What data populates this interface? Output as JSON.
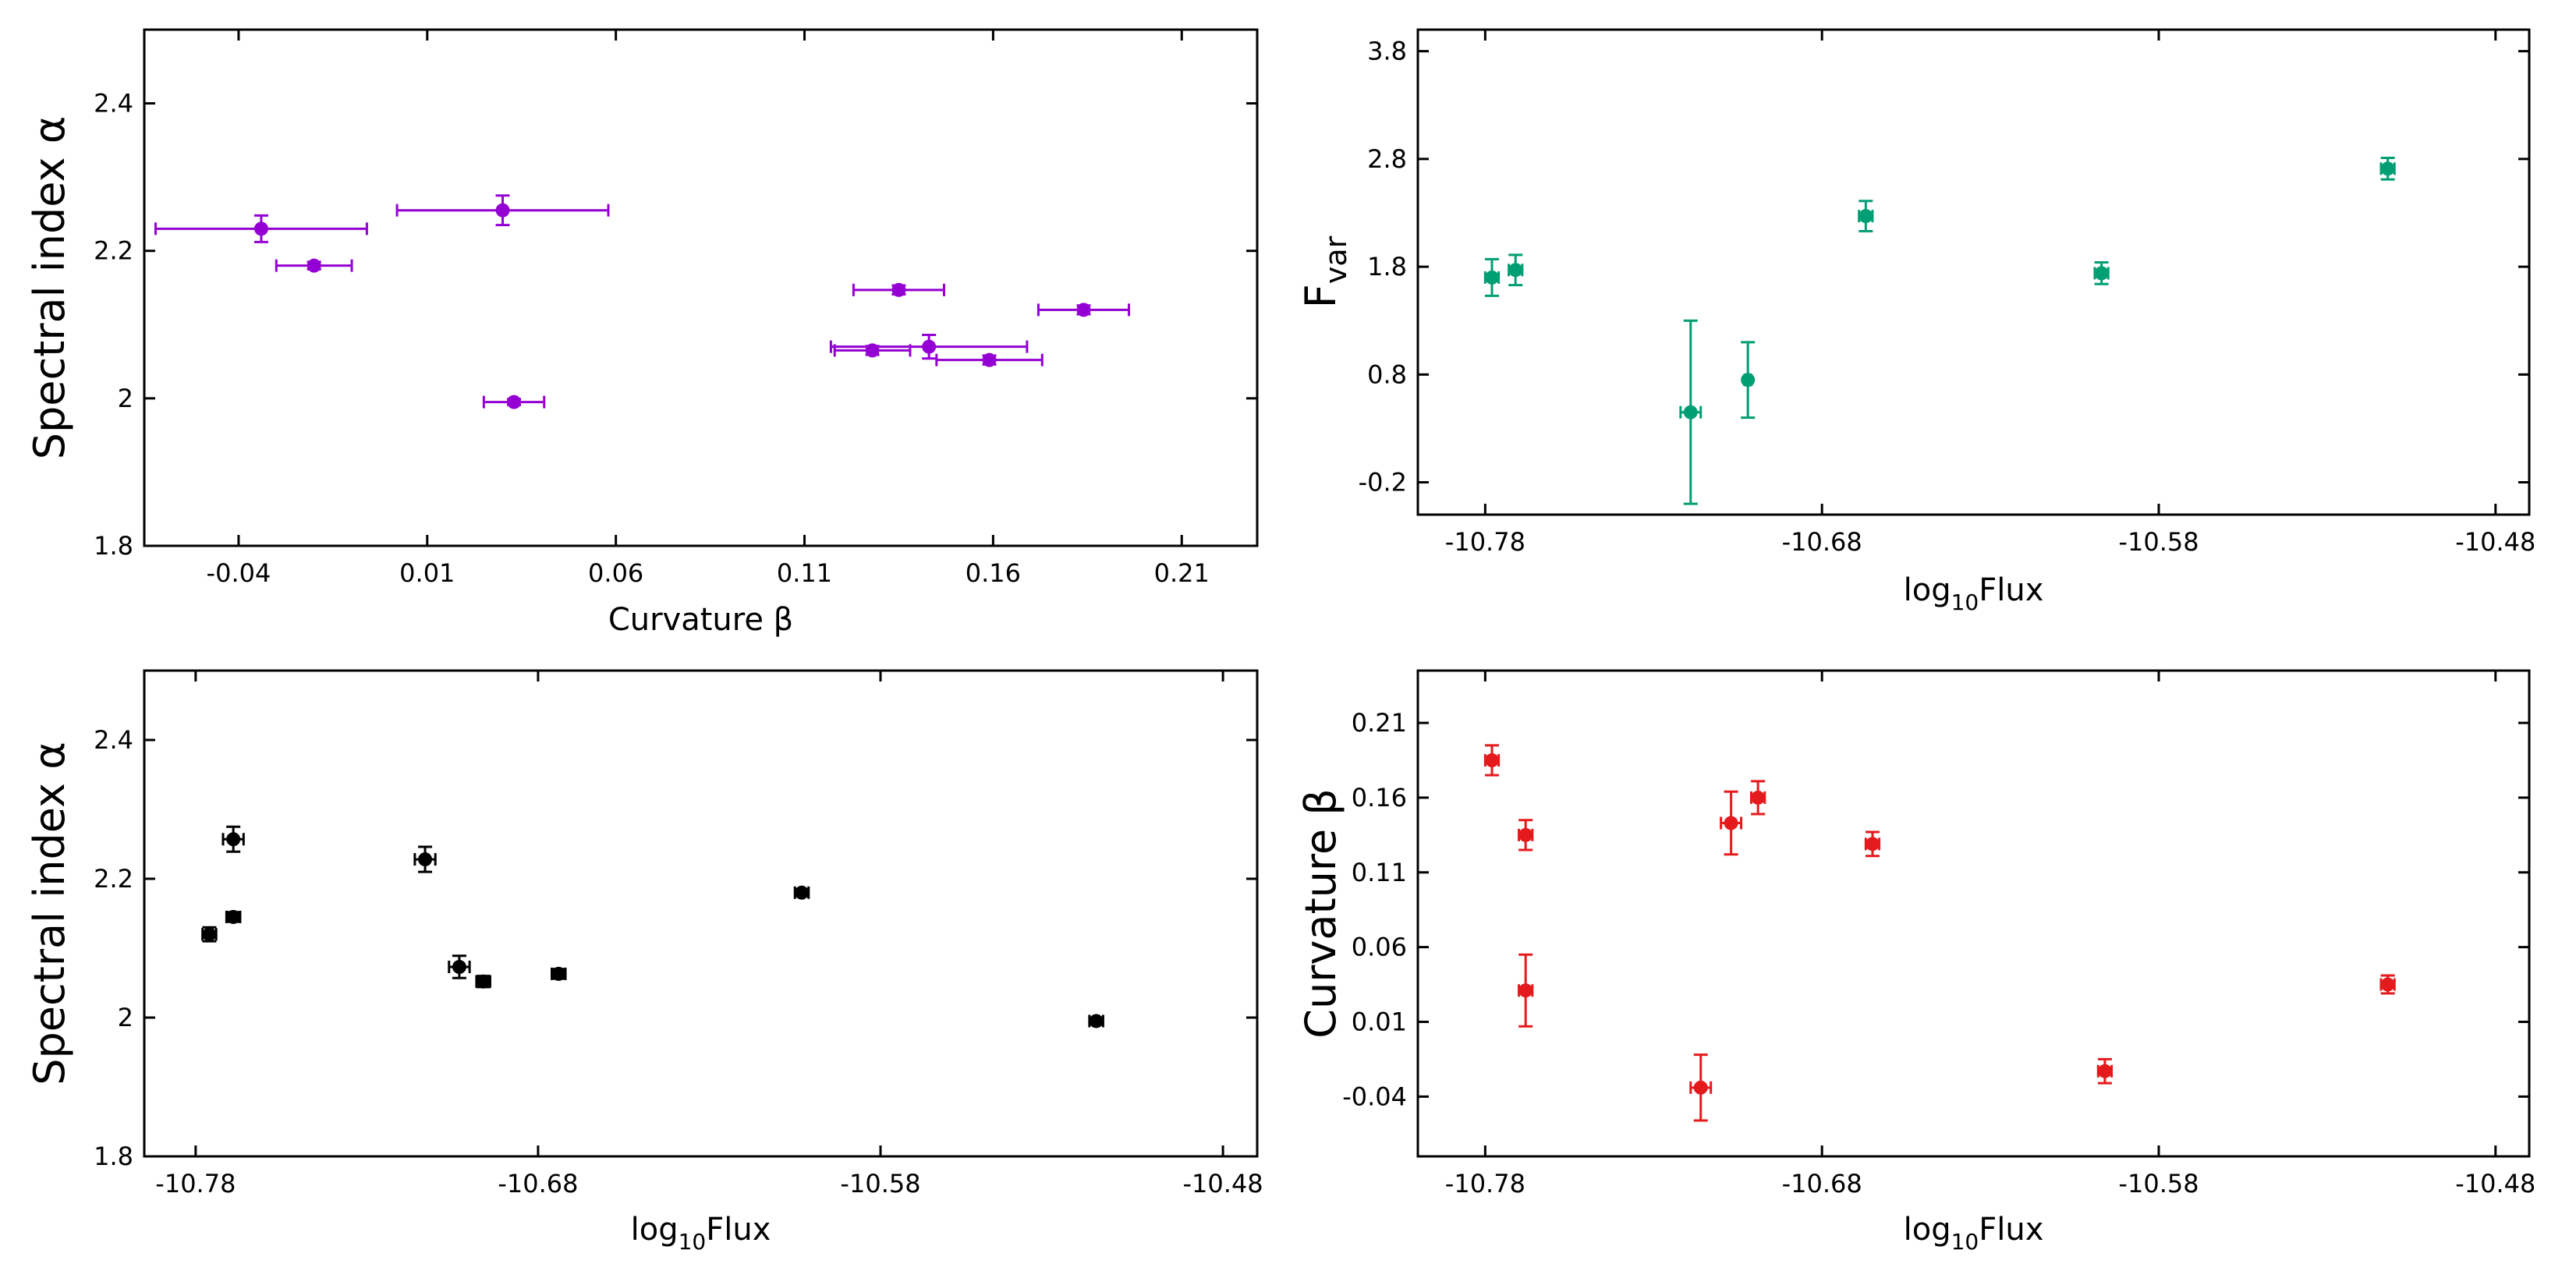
{
  "chart_data": [
    {
      "id": "alpha-vs-beta",
      "type": "scatter",
      "xlabel": "Curvature β",
      "ylabel": "Spectral index α",
      "xlim": [
        -0.065,
        0.23
      ],
      "ylim": [
        1.8,
        2.5
      ],
      "xticks": [
        -0.04,
        0.01,
        0.06,
        0.11,
        0.16,
        0.21
      ],
      "xtick_labels": [
        "-0.04",
        "0.01",
        "0.06",
        "0.11",
        "0.16",
        "0.21"
      ],
      "yticks": [
        1.8,
        2.0,
        2.2,
        2.4
      ],
      "ytick_labels": [
        "1.8",
        "2",
        "2.2",
        "2.4"
      ],
      "color": "#9400d3",
      "points": [
        {
          "x": -0.034,
          "y": 2.23,
          "xerr": 0.028,
          "yerr": 0.018
        },
        {
          "x": -0.02,
          "y": 2.18,
          "xerr": 0.01,
          "yerr": 0.005
        },
        {
          "x": 0.03,
          "y": 2.255,
          "xerr": 0.028,
          "yerr": 0.02
        },
        {
          "x": 0.033,
          "y": 1.995,
          "xerr": 0.008,
          "yerr": 0.004
        },
        {
          "x": 0.135,
          "y": 2.147,
          "xerr": 0.012,
          "yerr": 0.006
        },
        {
          "x": 0.128,
          "y": 2.065,
          "xerr": 0.01,
          "yerr": 0.006
        },
        {
          "x": 0.143,
          "y": 2.07,
          "xerr": 0.026,
          "yerr": 0.016
        },
        {
          "x": 0.159,
          "y": 2.052,
          "xerr": 0.014,
          "yerr": 0.006
        },
        {
          "x": 0.184,
          "y": 2.12,
          "xerr": 0.012,
          "yerr": 0.006
        }
      ]
    },
    {
      "id": "fvar-vs-flux",
      "type": "scatter",
      "xlabel": "log",
      "xlabel_sub": "10",
      "xlabel_rest": "Flux",
      "ylabel": "F",
      "ylabel_sub": "var",
      "xlim": [
        -10.8,
        -10.47
      ],
      "ylim": [
        -0.5,
        4.0
      ],
      "xticks": [
        -10.78,
        -10.68,
        -10.58,
        -10.48
      ],
      "xtick_labels": [
        "-10.78",
        "-10.68",
        "-10.58",
        "-10.48"
      ],
      "yticks": [
        -0.2,
        0.8,
        1.8,
        2.8,
        3.8
      ],
      "ytick_labels": [
        "-0.2",
        "0.8",
        "1.8",
        "2.8",
        "3.8"
      ],
      "color": "#009e73",
      "points": [
        {
          "x": -10.778,
          "y": 1.7,
          "xerr": 0.002,
          "yerr": 0.17
        },
        {
          "x": -10.771,
          "y": 1.77,
          "xerr": 0.002,
          "yerr": 0.14
        },
        {
          "x": -10.719,
          "y": 0.45,
          "xerr": 0.003,
          "yerr": 0.85
        },
        {
          "x": -10.702,
          "y": 0.75,
          "xerr": 0.001,
          "yerr": 0.35
        },
        {
          "x": -10.667,
          "y": 2.27,
          "xerr": 0.002,
          "yerr": 0.14
        },
        {
          "x": -10.597,
          "y": 1.74,
          "xerr": 0.002,
          "yerr": 0.1
        },
        {
          "x": -10.512,
          "y": 2.71,
          "xerr": 0.002,
          "yerr": 0.1
        }
      ]
    },
    {
      "id": "alpha-vs-flux",
      "type": "scatter",
      "xlabel": "log",
      "xlabel_sub": "10",
      "xlabel_rest": "Flux",
      "ylabel": "Spectral index α",
      "xlim": [
        -10.795,
        -10.47
      ],
      "ylim": [
        1.8,
        2.5
      ],
      "xticks": [
        -10.78,
        -10.68,
        -10.58,
        -10.48
      ],
      "xtick_labels": [
        "-10.78",
        "-10.68",
        "-10.58",
        "-10.48"
      ],
      "yticks": [
        1.8,
        2.0,
        2.2,
        2.4
      ],
      "ytick_labels": [
        "1.8",
        "2",
        "2.2",
        "2.4"
      ],
      "color": "#000000",
      "points": [
        {
          "x": -10.776,
          "y": 2.12,
          "xerr": 0.002,
          "yerr": 0.01
        },
        {
          "x": -10.769,
          "y": 2.145,
          "xerr": 0.002,
          "yerr": 0.007
        },
        {
          "x": -10.769,
          "y": 2.257,
          "xerr": 0.003,
          "yerr": 0.018
        },
        {
          "x": -10.713,
          "y": 2.228,
          "xerr": 0.003,
          "yerr": 0.018
        },
        {
          "x": -10.703,
          "y": 2.073,
          "xerr": 0.003,
          "yerr": 0.016
        },
        {
          "x": -10.696,
          "y": 2.052,
          "xerr": 0.002,
          "yerr": 0.008
        },
        {
          "x": -10.674,
          "y": 2.063,
          "xerr": 0.002,
          "yerr": 0.007
        },
        {
          "x": -10.603,
          "y": 2.18,
          "xerr": 0.002,
          "yerr": 0.005
        },
        {
          "x": -10.517,
          "y": 1.995,
          "xerr": 0.002,
          "yerr": 0.005
        }
      ]
    },
    {
      "id": "beta-vs-flux",
      "type": "scatter",
      "xlabel": "log",
      "xlabel_sub": "10",
      "xlabel_rest": "Flux",
      "ylabel": "Curvature β",
      "xlim": [
        -10.8,
        -10.47
      ],
      "ylim": [
        -0.08,
        0.245
      ],
      "xticks": [
        -10.78,
        -10.68,
        -10.58,
        -10.48
      ],
      "xtick_labels": [
        "-10.78",
        "-10.68",
        "-10.58",
        "-10.48"
      ],
      "yticks": [
        -0.04,
        0.01,
        0.06,
        0.11,
        0.16,
        0.21
      ],
      "ytick_labels": [
        "-0.04",
        "0.01",
        "0.06",
        "0.11",
        "0.16",
        "0.21"
      ],
      "color": "#e41a1c",
      "points": [
        {
          "x": -10.778,
          "y": 0.185,
          "xerr": 0.002,
          "yerr": 0.01
        },
        {
          "x": -10.768,
          "y": 0.135,
          "xerr": 0.002,
          "yerr": 0.01
        },
        {
          "x": -10.768,
          "y": 0.031,
          "xerr": 0.002,
          "yerr": 0.024
        },
        {
          "x": -10.716,
          "y": -0.034,
          "xerr": 0.003,
          "yerr": 0.022
        },
        {
          "x": -10.707,
          "y": 0.143,
          "xerr": 0.003,
          "yerr": 0.021
        },
        {
          "x": -10.699,
          "y": 0.16,
          "xerr": 0.002,
          "yerr": 0.011
        },
        {
          "x": -10.665,
          "y": 0.129,
          "xerr": 0.002,
          "yerr": 0.008
        },
        {
          "x": -10.596,
          "y": -0.023,
          "xerr": 0.002,
          "yerr": 0.008
        },
        {
          "x": -10.512,
          "y": 0.035,
          "xerr": 0.002,
          "yerr": 0.006
        }
      ]
    }
  ]
}
